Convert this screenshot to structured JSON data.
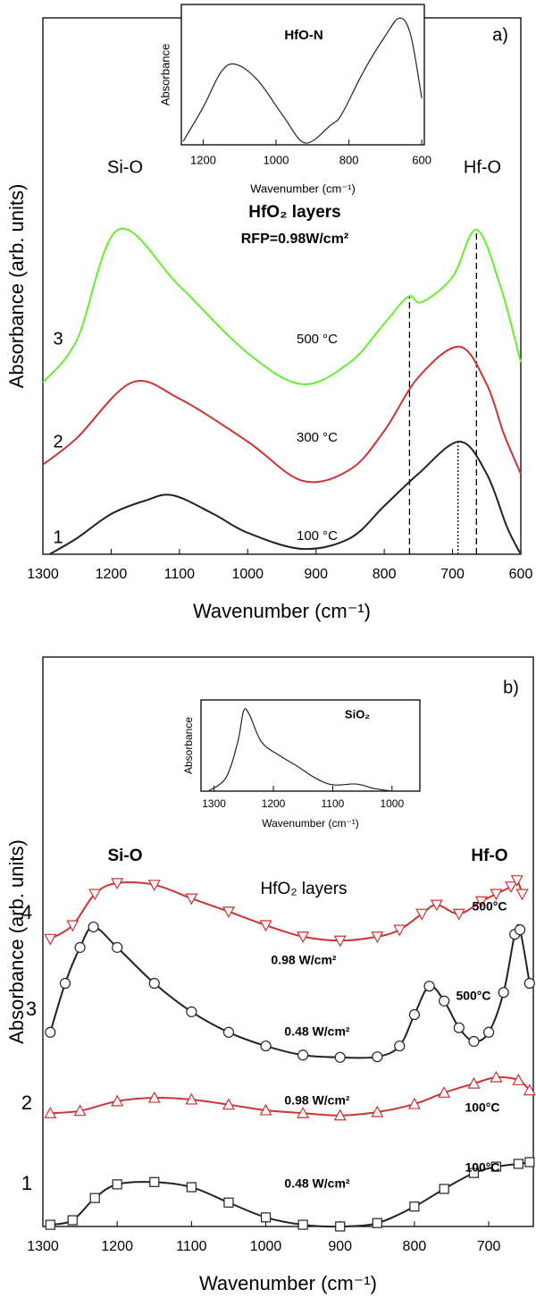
{
  "chart_data": [
    {
      "type": "line",
      "panel_label": "a)",
      "x_label": "Wavenumber (cm⁻¹)",
      "y_label": "Absorbance (arb. units)",
      "xlim": [
        1300,
        600
      ],
      "xticks": [
        1300,
        1200,
        1100,
        1000,
        900,
        800,
        700,
        600
      ],
      "ylim": [
        0,
        100
      ],
      "series": [
        {
          "name": "1",
          "color": "#222222",
          "x": [
            1290,
            1250,
            1200,
            1150,
            1110,
            1050,
            1000,
            920,
            850,
            800,
            750,
            690,
            650,
            620,
            600
          ],
          "values": [
            0,
            3,
            7.5,
            10,
            11,
            7.5,
            4,
            1,
            3,
            9,
            15,
            21,
            15,
            5,
            0
          ]
        },
        {
          "name": "2",
          "color": "#cc3333",
          "x": [
            1300,
            1250,
            1170,
            1100,
            1000,
            920,
            850,
            800,
            750,
            690,
            650,
            625,
            600
          ],
          "values": [
            16.7,
            21.7,
            32,
            29,
            21,
            13.7,
            15.8,
            23,
            33,
            38.7,
            31.7,
            22.5,
            15
          ]
        },
        {
          "name": "3",
          "color": "#66ee33",
          "x": [
            1300,
            1250,
            1190,
            1100,
            1000,
            920,
            850,
            800,
            765,
            745,
            700,
            665,
            630,
            600
          ],
          "values": [
            32,
            40,
            60.5,
            50,
            37.5,
            31.7,
            35.8,
            43,
            48,
            47,
            51.7,
            60.5,
            50,
            35.8
          ]
        }
      ],
      "vlines": [
        {
          "x": 763,
          "y": 48,
          "style": "dashed"
        },
        {
          "x": 692,
          "y": 20.8,
          "style": "dotted"
        },
        {
          "x": 665,
          "y": 60.5,
          "style": "dashed"
        }
      ],
      "annotations": [
        {
          "text": "Si-O",
          "color": "#000000",
          "weight": "normal"
        },
        {
          "text": "Hf-O",
          "color": "#000000",
          "weight": "normal"
        },
        {
          "text": "HfO₂ layers",
          "color": "#000000",
          "weight": "bold"
        },
        {
          "text": "RFP=0.98W/cm²",
          "color": "#000000",
          "weight": "bold"
        },
        {
          "text": "500 °C",
          "color": "#000000",
          "weight": "normal"
        },
        {
          "text": "300 °C",
          "color": "#000000",
          "weight": "normal"
        },
        {
          "text": "100 °C",
          "color": "#000000",
          "weight": "normal"
        }
      ]
    },
    {
      "type": "line",
      "title": "HfO-N",
      "x_label": "Wavenumber (cm⁻¹)",
      "y_label": "Absorbance",
      "xlim": [
        1260,
        593
      ],
      "xticks": [
        1200,
        1000,
        800,
        600
      ],
      "ylim": [
        0,
        100
      ],
      "series": [
        {
          "color": "#222222",
          "x": [
            1255,
            1200,
            1150,
            1110,
            1050,
            980,
            920,
            850,
            820,
            760,
            700,
            660,
            630,
            600
          ],
          "values": [
            2.5,
            26.8,
            52.2,
            57.3,
            45.9,
            20.4,
            1.3,
            14,
            21.7,
            52.2,
            77.7,
            90.4,
            77.7,
            33.1
          ]
        }
      ]
    },
    {
      "type": "line",
      "panel_label": "b)",
      "x_label": "Wavenumber (cm⁻¹)",
      "y_label": "Absorbance (arb. units)",
      "xlim": [
        1300,
        640
      ],
      "xticks": [
        1300,
        1200,
        1100,
        1000,
        900,
        800,
        700
      ],
      "ylim": [
        0,
        100
      ],
      "series": [
        {
          "name": "1",
          "color": "#222222",
          "marker": "square",
          "x": [
            1290,
            1260,
            1230,
            1200,
            1150,
            1100,
            1050,
            1000,
            950,
            900,
            850,
            800,
            760,
            720,
            690,
            660,
            645
          ],
          "values": [
            0.3,
            1.1,
            5,
            7.4,
            7.8,
            6.9,
            4.2,
            1.6,
            0.3,
            0,
            0.6,
            3.5,
            6.6,
            9.4,
            10.5,
            11,
            11.3
          ]
        },
        {
          "name": "2",
          "color": "#cc3333",
          "marker": "triangle-up",
          "x": [
            1290,
            1250,
            1200,
            1150,
            1100,
            1050,
            1000,
            950,
            900,
            850,
            800,
            760,
            720,
            690,
            660,
            645
          ],
          "values": [
            19.9,
            20.3,
            22,
            22.6,
            22.3,
            21.4,
            20.4,
            19.9,
            19.5,
            20.1,
            21.5,
            23.5,
            25.1,
            26.2,
            25.7,
            23.9
          ]
        },
        {
          "name": "3",
          "color": "#222222",
          "marker": "circle",
          "x": [
            1290,
            1270,
            1250,
            1232,
            1200,
            1150,
            1100,
            1050,
            1000,
            950,
            900,
            850,
            820,
            800,
            780,
            760,
            740,
            720,
            700,
            680,
            665,
            658,
            645
          ],
          "values": [
            34.1,
            42.7,
            49,
            52.6,
            49,
            42.7,
            37.7,
            34.1,
            31.7,
            30.1,
            29.7,
            29.8,
            31.7,
            37.2,
            42.2,
            39.6,
            34.9,
            32.5,
            34.1,
            41.1,
            51.3,
            52.1,
            42.7
          ]
        },
        {
          "name": "4",
          "color": "#cc3333",
          "marker": "triangle-down",
          "x": [
            1290,
            1260,
            1230,
            1200,
            1150,
            1100,
            1050,
            1000,
            950,
            900,
            850,
            820,
            790,
            770,
            740,
            710,
            690,
            670,
            662,
            655
          ],
          "values": [
            50.5,
            52.9,
            58.4,
            60.3,
            60,
            57.6,
            55.3,
            52.9,
            50.9,
            50.2,
            50.9,
            52.1,
            54.9,
            56.5,
            54.9,
            57.1,
            58.4,
            59.7,
            60.8,
            58.4
          ]
        }
      ],
      "annotations": [
        {
          "text": "Si-O",
          "color": "#000000",
          "weight": "bold"
        },
        {
          "text": "Hf-O",
          "color": "#000000",
          "weight": "bold"
        },
        {
          "text": "HfO₂ layers",
          "color": "#000000",
          "weight": "normal"
        },
        {
          "text": "500°C",
          "color": "#cc3333",
          "weight": "bold"
        },
        {
          "text": "0.98 W/cm²",
          "color": "#cc3333",
          "weight": "bold"
        },
        {
          "text": "500°C",
          "color": "#000000",
          "weight": "bold"
        },
        {
          "text": "0.48 W/cm²",
          "color": "#000000",
          "weight": "bold"
        },
        {
          "text": "0.98 W/cm²",
          "color": "#cc3333",
          "weight": "bold"
        },
        {
          "text": "100°C",
          "color": "#cc3333",
          "weight": "bold"
        },
        {
          "text": "0.48 W/cm²",
          "color": "#000000",
          "weight": "bold"
        },
        {
          "text": "100°C",
          "color": "#000000",
          "weight": "bold"
        }
      ]
    },
    {
      "type": "line",
      "title": "SiO₂",
      "x_label": "Wavenumber (cm⁻¹)",
      "y_label": "Absorbance",
      "xlim": [
        1322,
        953
      ],
      "xticks": [
        1300,
        1200,
        1100,
        1000
      ],
      "ylim": [
        0,
        100
      ],
      "series": [
        {
          "color": "#222222",
          "x": [
            1310,
            1280,
            1260,
            1250,
            1240,
            1220,
            1190,
            1160,
            1130,
            1100,
            1060,
            1030,
            1000
          ],
          "values": [
            0,
            14.7,
            53.9,
            88.2,
            83.3,
            53.9,
            39.2,
            27.5,
            14.7,
            6.9,
            7.8,
            2.9,
            0
          ]
        }
      ]
    }
  ]
}
